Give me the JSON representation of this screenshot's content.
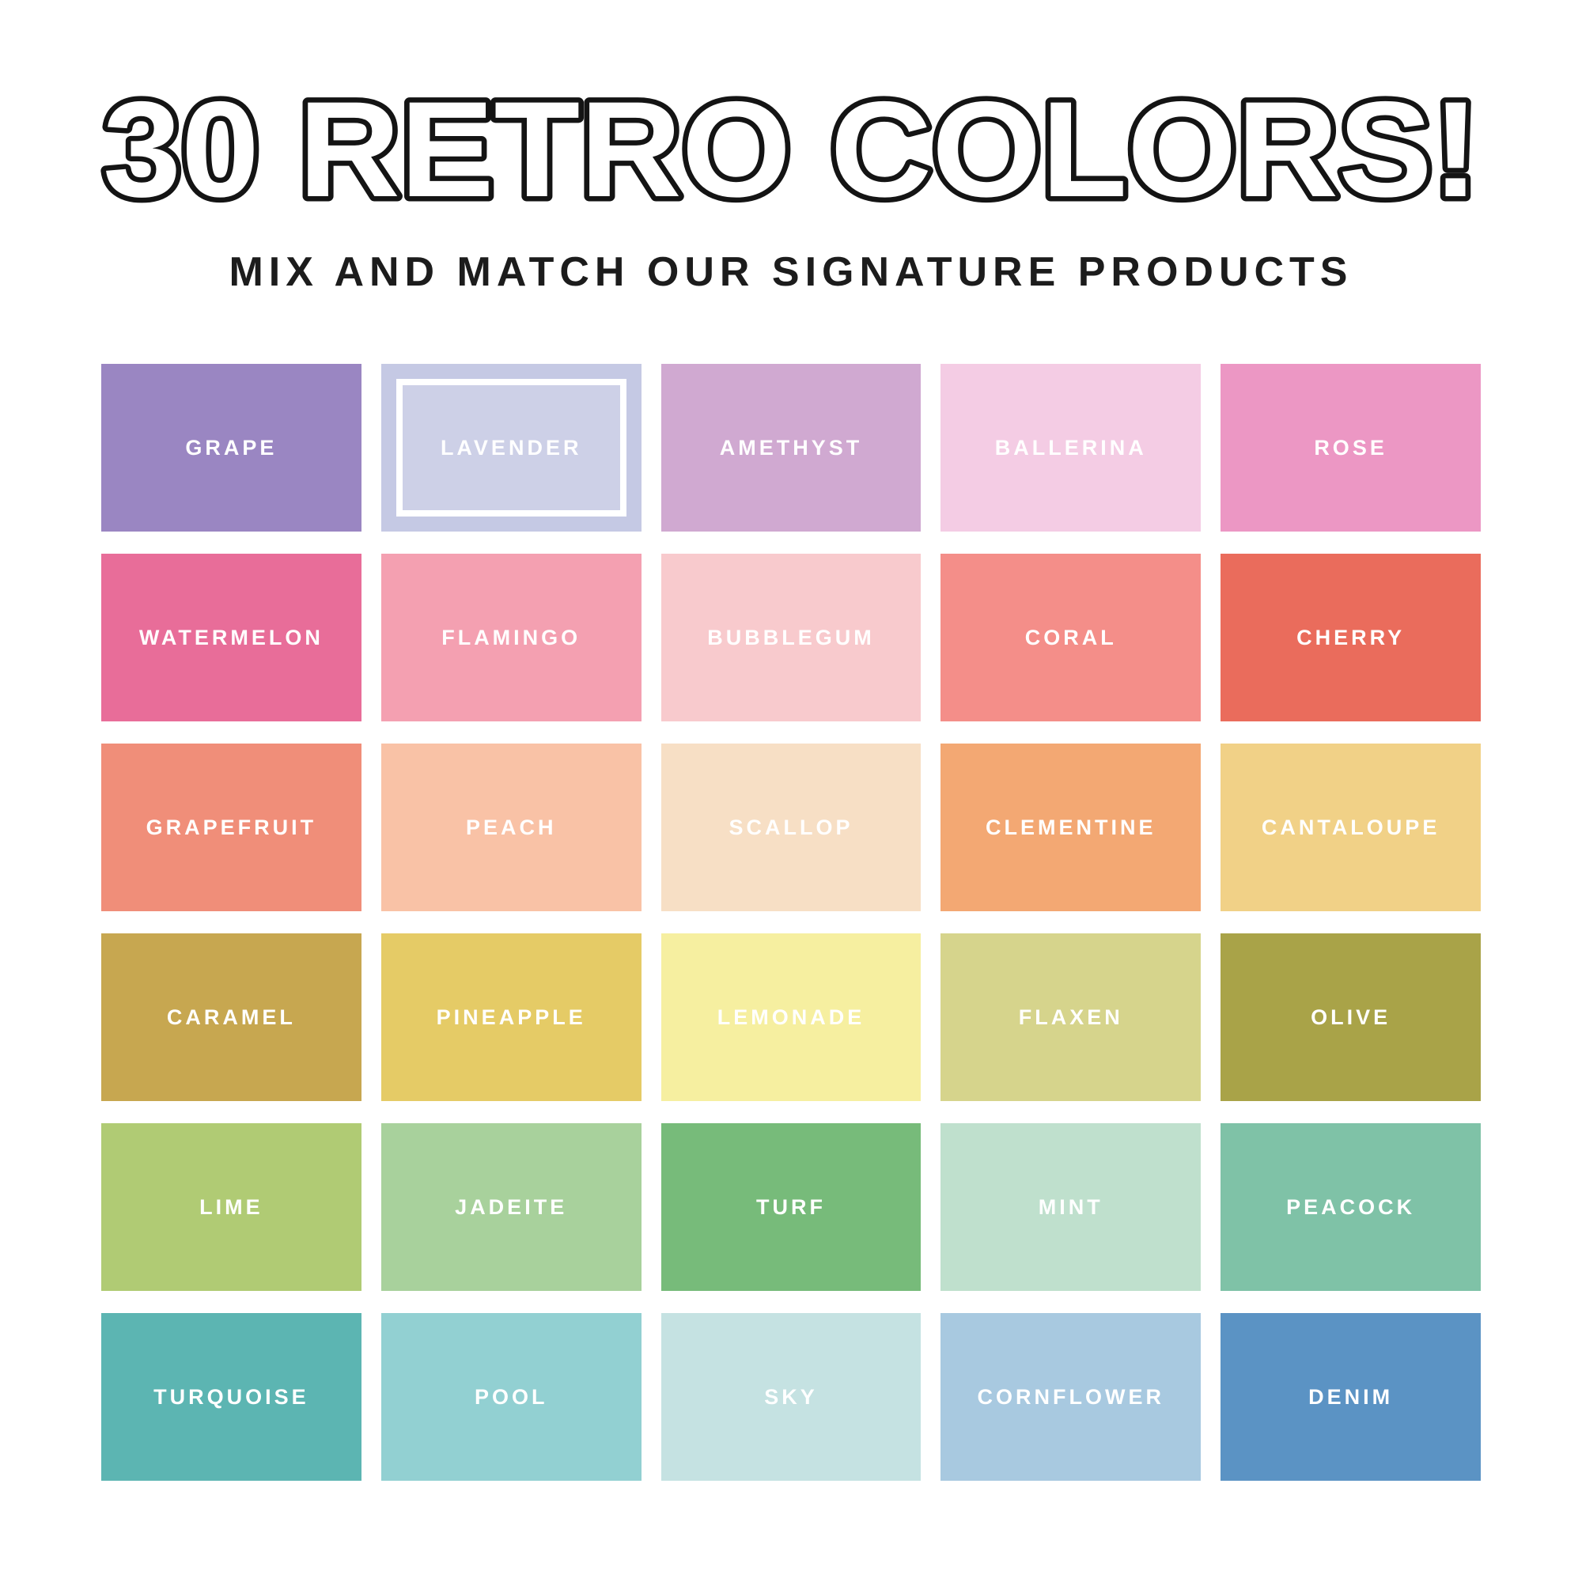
{
  "header": {
    "title": "30 RETRO COLORS!",
    "subtitle": "MIX AND MATCH OUR SIGNATURE PRODUCTS",
    "title_fill": "#ffffff",
    "title_outline": "#141414"
  },
  "palette": {
    "rows": 6,
    "cols": 5,
    "selected_swatch": "LAVENDER",
    "label_color": "#ffffff",
    "swatches": [
      {
        "name": "GRAPE",
        "color": "#9a86c2",
        "selected": false
      },
      {
        "name": "LAVENDER",
        "color": "#c5c9e4",
        "selected": true
      },
      {
        "name": "AMETHYST",
        "color": "#d0a9d1",
        "selected": false
      },
      {
        "name": "BALLERINA",
        "color": "#f4cce4",
        "selected": false
      },
      {
        "name": "ROSE",
        "color": "#ec97c4",
        "selected": false
      },
      {
        "name": "WATERMELON",
        "color": "#e86d99",
        "selected": false
      },
      {
        "name": "FLAMINGO",
        "color": "#f4a0b1",
        "selected": false
      },
      {
        "name": "BUBBLEGUM",
        "color": "#f8cacd",
        "selected": false
      },
      {
        "name": "CORAL",
        "color": "#f48e89",
        "selected": false
      },
      {
        "name": "CHERRY",
        "color": "#ea6c5c",
        "selected": false
      },
      {
        "name": "GRAPEFRUIT",
        "color": "#f08e79",
        "selected": false
      },
      {
        "name": "PEACH",
        "color": "#f9c2a6",
        "selected": false
      },
      {
        "name": "SCALLOP",
        "color": "#f7dfc5",
        "selected": false
      },
      {
        "name": "CLEMENTINE",
        "color": "#f3a873",
        "selected": false
      },
      {
        "name": "CANTALOUPE",
        "color": "#f1d187",
        "selected": false
      },
      {
        "name": "CARAMEL",
        "color": "#c7a750",
        "selected": false
      },
      {
        "name": "PINEAPPLE",
        "color": "#e5cb66",
        "selected": false
      },
      {
        "name": "LEMONADE",
        "color": "#f6efa0",
        "selected": false
      },
      {
        "name": "FLAXEN",
        "color": "#d6d48c",
        "selected": false
      },
      {
        "name": "OLIVE",
        "color": "#a9a348",
        "selected": false
      },
      {
        "name": "LIME",
        "color": "#b0cb74",
        "selected": false
      },
      {
        "name": "JADEITE",
        "color": "#a8d19c",
        "selected": false
      },
      {
        "name": "TURF",
        "color": "#77bb7a",
        "selected": false
      },
      {
        "name": "MINT",
        "color": "#bfe0cd",
        "selected": false
      },
      {
        "name": "PEACOCK",
        "color": "#7fc2a7",
        "selected": false
      },
      {
        "name": "TURQUOISE",
        "color": "#5cb5b2",
        "selected": false
      },
      {
        "name": "POOL",
        "color": "#92d0d2",
        "selected": false
      },
      {
        "name": "SKY",
        "color": "#c5e2e2",
        "selected": false
      },
      {
        "name": "CORNFLOWER",
        "color": "#a8c9e0",
        "selected": false
      },
      {
        "name": "DENIM",
        "color": "#5b93c4",
        "selected": false
      }
    ]
  }
}
